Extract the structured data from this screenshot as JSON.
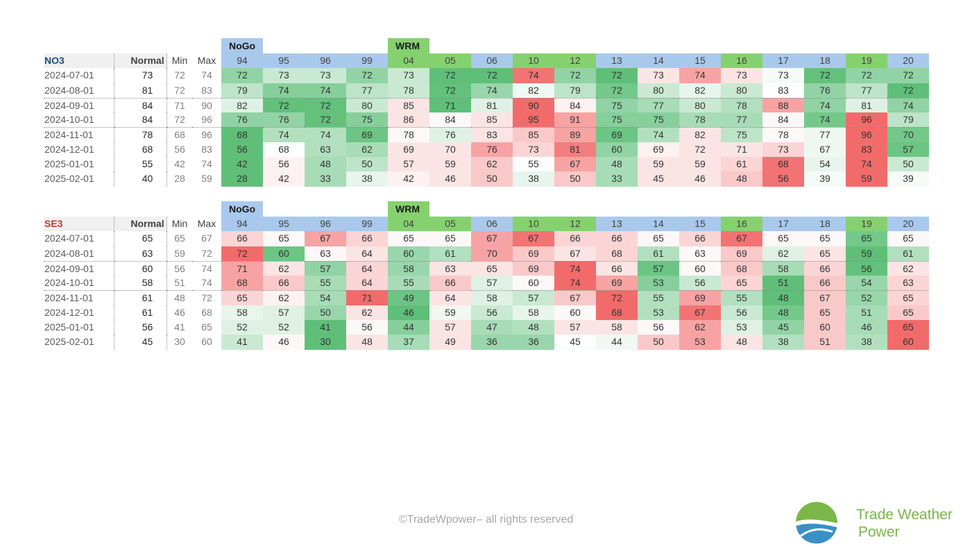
{
  "colors": {
    "header_blue": "#a9c9ec",
    "header_green": "#86d16f",
    "nogo_tag": "#a9c9ec",
    "wrm_tag": "#86d16f",
    "no3_label": "#1f4e79",
    "se3_label": "#c0392b",
    "brand": "#7ab648"
  },
  "columns": [
    "94",
    "95",
    "96",
    "99",
    "04",
    "05",
    "06",
    "10",
    "12",
    "13",
    "14",
    "15",
    "16",
    "17",
    "18",
    "19",
    "20"
  ],
  "column_groups": [
    "blue",
    "blue",
    "blue",
    "blue",
    "green",
    "green",
    "blue",
    "green",
    "green",
    "blue",
    "blue",
    "blue",
    "green",
    "blue",
    "blue",
    "green",
    "blue"
  ],
  "tags": {
    "nogo": "NoGo",
    "wrm": "WRM"
  },
  "headers": {
    "normal": "Normal",
    "min": "Min",
    "max": "Max"
  },
  "tables": [
    {
      "region": "NO3",
      "rows": [
        {
          "date": "2024-07-01",
          "normal": "73",
          "min": "72",
          "max": "74",
          "values": [
            "72",
            "73",
            "73",
            "72",
            "73",
            "72",
            "72",
            "74",
            "72",
            "72",
            "73",
            "74",
            "73",
            "73",
            "72",
            "72",
            "72"
          ],
          "colors": [
            "#91d3a5",
            "#c9e9d2",
            "#c9e9d2",
            "#91d3a5",
            "#c9e9d2",
            "#5fbf79",
            "#5fbf79",
            "#f27373",
            "#91d3a5",
            "#5fbf79",
            "#fbe4e4",
            "#f7a3a3",
            "#fbe4e4",
            "#f5fbf7",
            "#63c17c",
            "#91d3a5",
            "#91d3a5"
          ]
        },
        {
          "date": "2024-08-01",
          "normal": "81",
          "min": "72",
          "max": "83",
          "values": [
            "79",
            "74",
            "74",
            "77",
            "78",
            "72",
            "74",
            "82",
            "79",
            "72",
            "80",
            "82",
            "80",
            "83",
            "76",
            "77",
            "72"
          ],
          "colors": [
            "#bde4c8",
            "#86cf9b",
            "#86cf9b",
            "#bde4c8",
            "#c9e9d2",
            "#63c17c",
            "#99d6ab",
            "#f0f8f2",
            "#bde4c8",
            "#74c88a",
            "#c9e9d2",
            "#e8f5ec",
            "#c9e9d2",
            "#fcfefd",
            "#91d3a5",
            "#bde4c8",
            "#5fbf79"
          ]
        },
        {
          "date": "2024-09-01",
          "normal": "84",
          "min": "71",
          "max": "90",
          "values": [
            "82",
            "72",
            "72",
            "80",
            "85",
            "71",
            "81",
            "90",
            "84",
            "75",
            "77",
            "80",
            "78",
            "88",
            "74",
            "81",
            "74"
          ],
          "colors": [
            "#dff1e5",
            "#63c17c",
            "#63c17c",
            "#c9e9d2",
            "#fbe4e4",
            "#5fbf79",
            "#dff1e5",
            "#f26b6b",
            "#fdf1f1",
            "#91d3a5",
            "#a7dcb6",
            "#c9e9d2",
            "#b2e0bf",
            "#f7a3a3",
            "#91d3a5",
            "#dff1e5",
            "#91d3a5"
          ]
        },
        {
          "date": "2024-10-01",
          "normal": "84",
          "min": "72",
          "max": "96",
          "values": [
            "76",
            "76",
            "72",
            "75",
            "86",
            "84",
            "85",
            "95",
            "91",
            "75",
            "75",
            "78",
            "77",
            "84",
            "74",
            "96",
            "79"
          ],
          "colors": [
            "#91d3a5",
            "#91d3a5",
            "#63c17c",
            "#86cf9b",
            "#fbe4e4",
            "#fdf8f8",
            "#fbe4e4",
            "#f26b6b",
            "#f7a3a3",
            "#86cf9b",
            "#86cf9b",
            "#a7dcb6",
            "#a7dcb6",
            "#fdf8f8",
            "#74c88a",
            "#f26b6b",
            "#bde4c8"
          ]
        },
        {
          "date": "2024-11-01",
          "normal": "78",
          "min": "68",
          "max": "96",
          "values": [
            "68",
            "74",
            "74",
            "69",
            "78",
            "76",
            "83",
            "85",
            "89",
            "69",
            "74",
            "82",
            "75",
            "78",
            "77",
            "96",
            "70"
          ],
          "colors": [
            "#5fbf79",
            "#b2e0bf",
            "#b2e0bf",
            "#6cc584",
            "#fdf8f8",
            "#dff1e5",
            "#fbe4e4",
            "#f9c9c9",
            "#f7a3a3",
            "#6cc584",
            "#b2e0bf",
            "#fbe4e4",
            "#bde4c8",
            "#fdf8f8",
            "#eef8f1",
            "#f26b6b",
            "#74c88a"
          ]
        },
        {
          "date": "2024-12-01",
          "normal": "68",
          "min": "56",
          "max": "83",
          "values": [
            "56",
            "68",
            "63",
            "62",
            "69",
            "70",
            "76",
            "73",
            "81",
            "60",
            "69",
            "72",
            "71",
            "73",
            "67",
            "83",
            "57"
          ],
          "colors": [
            "#5fbf79",
            "#fcfefd",
            "#b2e0bf",
            "#a7dcb6",
            "#fbe4e4",
            "#fbe4e4",
            "#f7a3a3",
            "#fbd5d5",
            "#f27e7e",
            "#91d3a5",
            "#fdf1f1",
            "#fbe4e4",
            "#fbe4e4",
            "#fbd5d5",
            "#eef8f1",
            "#f26b6b",
            "#6cc584"
          ]
        },
        {
          "date": "2025-01-01",
          "normal": "55",
          "min": "42",
          "max": "74",
          "values": [
            "42",
            "56",
            "48",
            "50",
            "57",
            "59",
            "62",
            "55",
            "67",
            "48",
            "59",
            "59",
            "61",
            "68",
            "54",
            "74",
            "50"
          ],
          "colors": [
            "#5fbf79",
            "#fdf1f1",
            "#a7dcb6",
            "#bde4c8",
            "#fbe4e4",
            "#fbe4e4",
            "#f9c9c9",
            "#fcfefd",
            "#f7a3a3",
            "#a7dcb6",
            "#fbe4e4",
            "#fbe4e4",
            "#fbd5d5",
            "#f27373",
            "#e8f5ec",
            "#f26b6b",
            "#c9e9d2"
          ]
        },
        {
          "date": "2025-02-01",
          "normal": "40",
          "min": "28",
          "max": "59",
          "values": [
            "28",
            "42",
            "33",
            "38",
            "42",
            "46",
            "50",
            "38",
            "50",
            "33",
            "45",
            "46",
            "48",
            "56",
            "39",
            "59",
            "39"
          ],
          "colors": [
            "#5fbf79",
            "#fdf1f1",
            "#a7dcb6",
            "#e8f5ec",
            "#fdf1f1",
            "#fbe4e4",
            "#f9c9c9",
            "#e8f5ec",
            "#f9c9c9",
            "#a7dcb6",
            "#fbe4e4",
            "#fbe4e4",
            "#f9c9c9",
            "#f27373",
            "#f5fbf7",
            "#f26b6b",
            "#f5fbf7"
          ]
        }
      ]
    },
    {
      "region": "SE3",
      "rows": [
        {
          "date": "2024-07-01",
          "normal": "65",
          "min": "65",
          "max": "67",
          "values": [
            "66",
            "65",
            "67",
            "66",
            "65",
            "65",
            "67",
            "67",
            "66",
            "66",
            "65",
            "66",
            "67",
            "65",
            "65",
            "65",
            "65"
          ],
          "colors": [
            "#fbd5d5",
            "#fdf8f8",
            "#f7a3a3",
            "#fbd5d5",
            "#fdf8f8",
            "#fdf8f8",
            "#f7a3a3",
            "#f27373",
            "#fbd5d5",
            "#fbd5d5",
            "#fdf8f8",
            "#fbd5d5",
            "#f27373",
            "#fdf8f8",
            "#fdf8f8",
            "#74c88a",
            "#fdf8f8"
          ]
        },
        {
          "date": "2024-08-01",
          "normal": "63",
          "min": "59",
          "max": "72",
          "values": [
            "72",
            "60",
            "63",
            "64",
            "60",
            "61",
            "70",
            "69",
            "67",
            "68",
            "61",
            "63",
            "69",
            "62",
            "65",
            "59",
            "61"
          ],
          "colors": [
            "#f26b6b",
            "#6cc584",
            "#fdf8f8",
            "#fbe4e4",
            "#99d6ab",
            "#b2e0bf",
            "#f7a3a3",
            "#f9c9c9",
            "#fbe4e4",
            "#fbd5d5",
            "#b2e0bf",
            "#fdf8f8",
            "#f9c9c9",
            "#dff1e5",
            "#fbe4e4",
            "#5fbf79",
            "#b2e0bf"
          ]
        },
        {
          "date": "2024-09-01",
          "normal": "60",
          "min": "56",
          "max": "74",
          "values": [
            "71",
            "62",
            "57",
            "64",
            "58",
            "63",
            "65",
            "69",
            "74",
            "66",
            "57",
            "60",
            "68",
            "58",
            "66",
            "56",
            "62"
          ],
          "colors": [
            "#f7a3a3",
            "#fbe4e4",
            "#91d3a5",
            "#fbd5d5",
            "#99d6ab",
            "#fbe4e4",
            "#fbe4e4",
            "#f9c9c9",
            "#f26b6b",
            "#fbe4e4",
            "#6cc584",
            "#fdf8f8",
            "#f9c9c9",
            "#a7dcb6",
            "#fbd5d5",
            "#63c17c",
            "#fbe4e4"
          ]
        },
        {
          "date": "2024-10-01",
          "normal": "58",
          "min": "51",
          "max": "74",
          "values": [
            "68",
            "66",
            "55",
            "64",
            "55",
            "66",
            "57",
            "60",
            "74",
            "69",
            "53",
            "56",
            "65",
            "51",
            "66",
            "54",
            "63"
          ],
          "colors": [
            "#f7a3a3",
            "#f9c9c9",
            "#a7dcb6",
            "#fbd5d5",
            "#a7dcb6",
            "#f9c9c9",
            "#dff1e5",
            "#fdf8f8",
            "#f26b6b",
            "#f7a3a3",
            "#86cf9b",
            "#c9e9d2",
            "#fbd5d5",
            "#5fbf79",
            "#f9c9c9",
            "#99d6ab",
            "#fbd5d5"
          ]
        },
        {
          "date": "2024-11-01",
          "normal": "61",
          "min": "48",
          "max": "72",
          "values": [
            "65",
            "62",
            "54",
            "71",
            "49",
            "64",
            "58",
            "57",
            "67",
            "72",
            "55",
            "69",
            "55",
            "48",
            "67",
            "52",
            "65"
          ],
          "colors": [
            "#fbd5d5",
            "#fdf1f1",
            "#a7dcb6",
            "#f26b6b",
            "#6cc584",
            "#fbe4e4",
            "#dff1e5",
            "#c9e9d2",
            "#f9c9c9",
            "#f26b6b",
            "#b2e0bf",
            "#f7a3a3",
            "#b2e0bf",
            "#5fbf79",
            "#f9c9c9",
            "#99d6ab",
            "#fbd5d5"
          ]
        },
        {
          "date": "2024-12-01",
          "normal": "61",
          "min": "46",
          "max": "68",
          "values": [
            "58",
            "57",
            "50",
            "62",
            "46",
            "59",
            "56",
            "58",
            "60",
            "68",
            "53",
            "67",
            "56",
            "48",
            "65",
            "51",
            "65"
          ],
          "colors": [
            "#e8f5ec",
            "#dff1e5",
            "#99d6ab",
            "#fbe4e4",
            "#5fbf79",
            "#f0f8f2",
            "#c9e9d2",
            "#e8f5ec",
            "#fdf8f8",
            "#f26b6b",
            "#b2e0bf",
            "#f27373",
            "#c9e9d2",
            "#74c88a",
            "#f9c9c9",
            "#a7dcb6",
            "#f9c9c9"
          ]
        },
        {
          "date": "2025-01-01",
          "normal": "56",
          "min": "41",
          "max": "65",
          "values": [
            "52",
            "52",
            "41",
            "56",
            "44",
            "57",
            "47",
            "48",
            "57",
            "58",
            "56",
            "62",
            "53",
            "45",
            "60",
            "46",
            "65"
          ],
          "colors": [
            "#dff1e5",
            "#dff1e5",
            "#5fbf79",
            "#fdf8f8",
            "#86cf9b",
            "#fbe4e4",
            "#a7dcb6",
            "#b2e0bf",
            "#fbe4e4",
            "#fbe4e4",
            "#fdf8f8",
            "#f7a3a3",
            "#dff1e5",
            "#91d3a5",
            "#f9c9c9",
            "#a7dcb6",
            "#f26b6b"
          ]
        },
        {
          "date": "2025-02-01",
          "normal": "45",
          "min": "30",
          "max": "60",
          "values": [
            "41",
            "46",
            "30",
            "48",
            "37",
            "49",
            "36",
            "36",
            "45",
            "44",
            "50",
            "53",
            "48",
            "38",
            "51",
            "38",
            "60"
          ],
          "colors": [
            "#c9e9d2",
            "#fdf8f8",
            "#5fbf79",
            "#fbe4e4",
            "#a7dcb6",
            "#fbe4e4",
            "#99d6ab",
            "#99d6ab",
            "#fcfefd",
            "#f0f8f2",
            "#f9c9c9",
            "#f7a3a3",
            "#fbe4e4",
            "#b2e0bf",
            "#f9c9c9",
            "#b2e0bf",
            "#f26b6b"
          ]
        }
      ]
    }
  ],
  "footer": {
    "copyright": "©TradeWpower– all rights reserved"
  },
  "brand": {
    "line1": "Trade Weather",
    "line2": "Power",
    "logo": "wave-sun-logo"
  }
}
